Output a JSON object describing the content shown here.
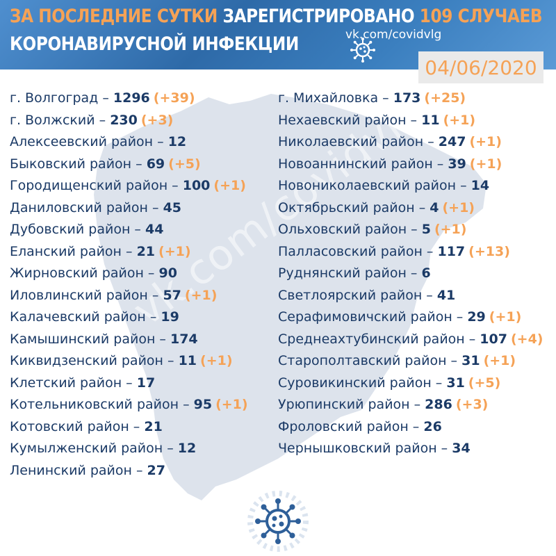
{
  "header": {
    "line1_prefix": "ЗА ПОСЛЕДНИЕ СУТКИ",
    "line1_middle": "ЗАРЕГИСТРИРОВАНО",
    "line1_cases": "109 СЛУЧАЕВ",
    "line2": "КОРОНАВИРУСНОЙ ИНФЕКЦИИ",
    "site": "vk.com/covidvlg",
    "date": "04/06/2020"
  },
  "watermark": "vk.com/covidvlg",
  "colors": {
    "accent": "#f5a256",
    "text": "#1b3a66",
    "header_bg": "#3b7fbf",
    "map_fill": "#dde3ec"
  },
  "icons": [
    "virus-icon-header",
    "virus-icon-bottom"
  ],
  "left_column": [
    {
      "name": "г. Волгоград –",
      "total": "1296",
      "increase": "(+39)"
    },
    {
      "name": "г. Волжский –",
      "total": "230",
      "increase": "(+3)"
    },
    {
      "name": "Алексеевский район –",
      "total": "12",
      "increase": ""
    },
    {
      "name": "Быковский район –",
      "total": "69",
      "increase": "(+5)"
    },
    {
      "name": "Городищенский район –",
      "total": "100",
      "increase": "(+1)"
    },
    {
      "name": "Даниловский район –",
      "total": "45",
      "increase": ""
    },
    {
      "name": "Дубовский район –",
      "total": "44",
      "increase": ""
    },
    {
      "name": "Еланский район –",
      "total": "21",
      "increase": "(+1)"
    },
    {
      "name": "Жирновский район –",
      "total": "90",
      "increase": ""
    },
    {
      "name": "Иловлинский район –",
      "total": "57",
      "increase": "(+1)"
    },
    {
      "name": "Калачевский район –",
      "total": "19",
      "increase": ""
    },
    {
      "name": "Камышинский район –",
      "total": "174",
      "increase": ""
    },
    {
      "name": "Киквидзенский район –",
      "total": "11",
      "increase": "(+1)"
    },
    {
      "name": "Клетский район –",
      "total": "17",
      "increase": ""
    },
    {
      "name": "Котельниковский район –",
      "total": "95",
      "increase": "(+1)"
    },
    {
      "name": "Котовский район –",
      "total": "21",
      "increase": ""
    },
    {
      "name": "Кумылженский район –",
      "total": "12",
      "increase": ""
    },
    {
      "name": "Ленинский район –",
      "total": "27",
      "increase": ""
    }
  ],
  "right_column": [
    {
      "name": "г. Михайловка –",
      "total": "173",
      "increase": "(+25)"
    },
    {
      "name": "Нехаевский район –",
      "total": "11",
      "increase": "(+1)"
    },
    {
      "name": "Николаевский район –",
      "total": "247",
      "increase": "(+1)"
    },
    {
      "name": "Новоаннинский район –",
      "total": "39",
      "increase": "(+1)"
    },
    {
      "name": "Новониколаевский район –",
      "total": "14",
      "increase": ""
    },
    {
      "name": "Октябрьский район –",
      "total": "4",
      "increase": "(+1)"
    },
    {
      "name": "Ольховский район –",
      "total": "5",
      "increase": "(+1)"
    },
    {
      "name": "Палласовский район –",
      "total": "117",
      "increase": "(+13)"
    },
    {
      "name": "Руднянский район –",
      "total": "6",
      "increase": ""
    },
    {
      "name": "Светлоярский район –",
      "total": "41",
      "increase": ""
    },
    {
      "name": "Серафимовичский район –",
      "total": "29",
      "increase": "(+1)"
    },
    {
      "name": "Среднеахтубинский район –",
      "total": "107",
      "increase": "(+4)"
    },
    {
      "name": "Старополтавский район –",
      "total": "31",
      "increase": "(+1)"
    },
    {
      "name": "Суровикинский район –",
      "total": "31",
      "increase": "(+5)"
    },
    {
      "name": "Урюпинский район –",
      "total": "286",
      "increase": "(+3)"
    },
    {
      "name": "Фроловский район –",
      "total": "26",
      "increase": ""
    },
    {
      "name": "Чернышковский район –",
      "total": "34",
      "increase": ""
    }
  ]
}
